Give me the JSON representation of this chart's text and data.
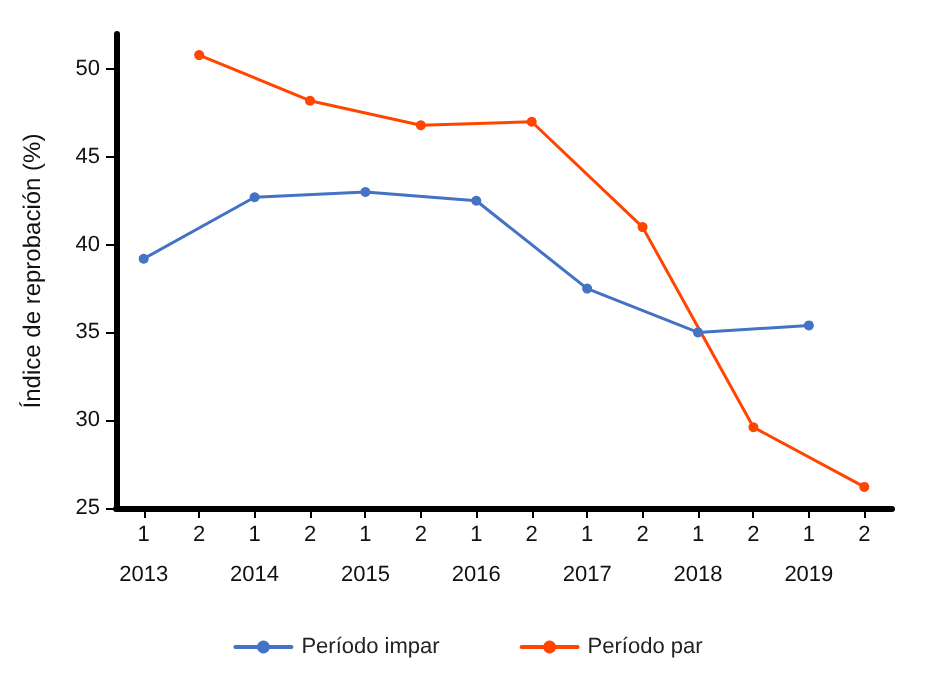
{
  "chart_data": {
    "type": "line",
    "ylabel": "Índice de reprobación (%)",
    "categories": [
      "1",
      "2",
      "1",
      "2",
      "1",
      "2",
      "1",
      "2",
      "1",
      "2",
      "1",
      "2",
      "1",
      "2"
    ],
    "annotations": [
      "2013",
      "2014",
      "2015",
      "2016",
      "2017",
      "2018",
      "2019"
    ],
    "series": [
      {
        "name": "Período impar",
        "color": "#4472c4",
        "values": [
          39.2,
          null,
          42.7,
          null,
          43.0,
          null,
          42.5,
          null,
          37.5,
          null,
          35.0,
          null,
          35.4,
          null
        ]
      },
      {
        "name": "Período par",
        "color": "#ff4500",
        "values": [
          null,
          50.8,
          null,
          48.2,
          null,
          46.8,
          null,
          47.0,
          null,
          41.0,
          null,
          29.6,
          null,
          26.2
        ]
      }
    ],
    "ylim": [
      25,
      52
    ],
    "yticks": [
      25,
      30,
      35,
      40,
      45,
      50
    ],
    "grid": false,
    "legend": "bottom",
    "marker": "circle",
    "line_style": "solid"
  }
}
